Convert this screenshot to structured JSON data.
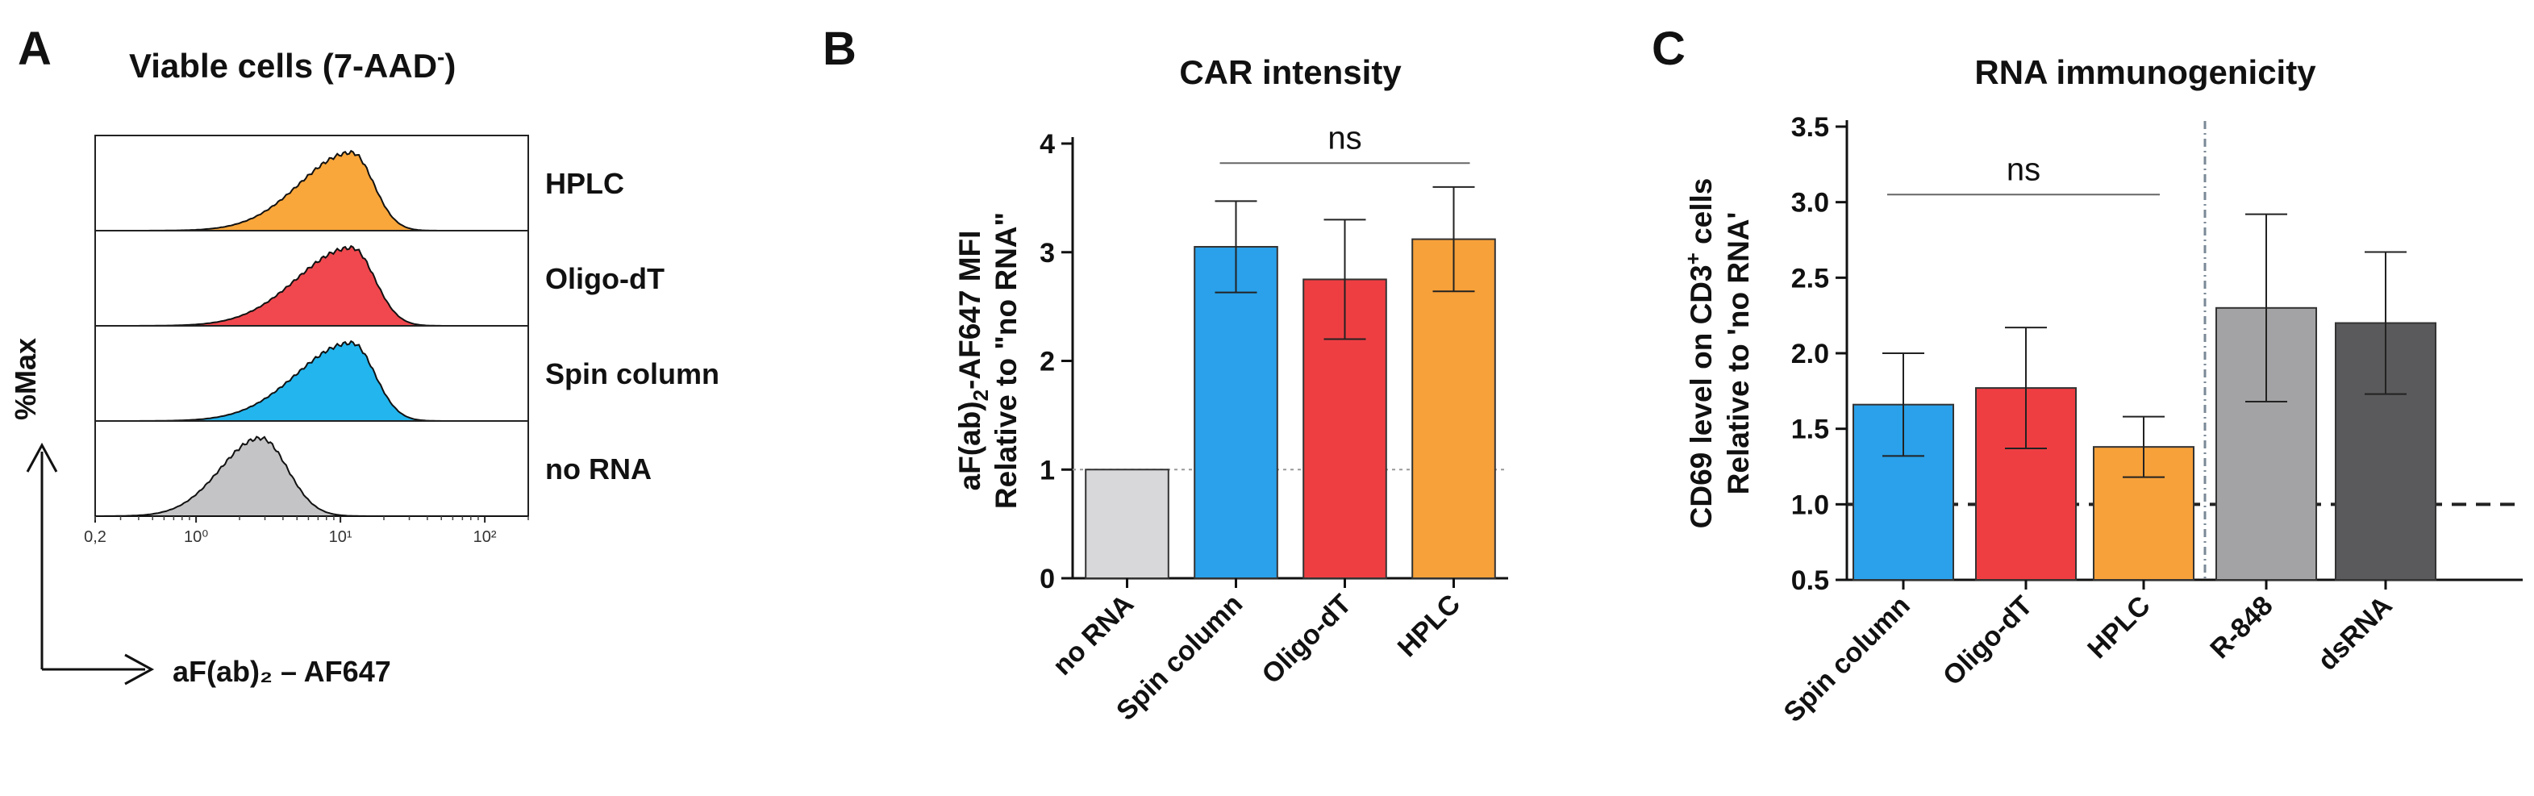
{
  "panels": {
    "a": {
      "label": "A",
      "title": "Viable cells (7-AAD",
      "title_sup": "-",
      "title_end": ")"
    },
    "b": {
      "label": "B",
      "title": "CAR intensity"
    },
    "c": {
      "label": "C",
      "title": "RNA immunogenicity"
    }
  },
  "chart_data": [
    {
      "type": "histogram",
      "panel": "A",
      "title": "Viable cells (7-AAD-)",
      "xlabel": "aF(ab)₂ – AF647",
      "ylabel": "%Max",
      "xscale": "log",
      "xlim": [
        0.2,
        200
      ],
      "xticks": [
        "0,2",
        "10⁰",
        "10¹",
        "10²"
      ],
      "series": [
        {
          "name": "HPLC",
          "color": "#f9a63a",
          "peak": 12,
          "spread": 0.36,
          "skew": 2.4
        },
        {
          "name": "Oligo-dT",
          "color": "#f0484e",
          "peak": 12,
          "spread": 0.38,
          "skew": 2.4
        },
        {
          "name": "Spin column",
          "color": "#22b5ee",
          "peak": 12,
          "spread": 0.38,
          "skew": 2.4
        },
        {
          "name": "no RNA",
          "color": "#c4c4c6",
          "peak": 2.8,
          "spread": 0.28,
          "skew": 1.5
        }
      ]
    },
    {
      "type": "bar",
      "panel": "B",
      "title": "CAR intensity",
      "ylabel_line1": "aF(ab)",
      "ylabel_sub": "2",
      "ylabel_line1_end": "-AF647 MFI",
      "ylabel_line2": "Relative to \"no RNA\"",
      "categories": [
        "no RNA",
        "Spin column",
        "Oligo-dT",
        "HPLC"
      ],
      "values": [
        1.0,
        3.05,
        2.75,
        3.12
      ],
      "errors": [
        0,
        0.42,
        0.55,
        0.48
      ],
      "colors": [
        "#d8d8da",
        "#2aa1ea",
        "#ef3e42",
        "#f7a13a"
      ],
      "ylim": [
        0,
        4
      ],
      "yticks": [
        "0",
        "1",
        "2",
        "3",
        "4"
      ],
      "reference_line": 1,
      "annotation": "ns"
    },
    {
      "type": "bar",
      "panel": "C",
      "title": "RNA immunogenicity",
      "ylabel_line1": "CD69 level on CD3",
      "ylabel_sup": "+",
      "ylabel_line1_end": " cells",
      "ylabel_line2": "Relative to 'no RNA'",
      "categories": [
        "Spin column",
        "Oligo-dT",
        "HPLC",
        "R-848",
        "dsRNA"
      ],
      "values": [
        1.66,
        1.77,
        1.38,
        2.3,
        2.2
      ],
      "errors": [
        0.34,
        0.4,
        0.2,
        0.62,
        0.47
      ],
      "colors": [
        "#2aa1ea",
        "#ef3e42",
        "#f7a13a",
        "#a3a3a5",
        "#5a5a5c"
      ],
      "ylim": [
        0.5,
        3.5
      ],
      "yticks": [
        "0.5",
        "1.0",
        "1.5",
        "2.0",
        "2.5",
        "3.0",
        "3.5"
      ],
      "reference_line": 1.0,
      "annotation": "ns"
    }
  ]
}
